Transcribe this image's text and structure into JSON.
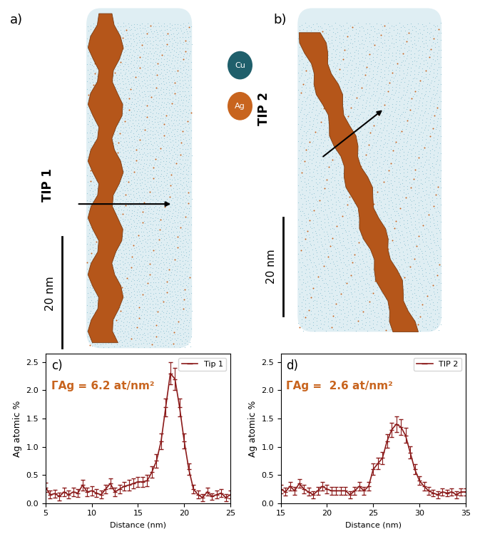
{
  "chart_data": [
    {
      "type": "line",
      "panel": "c)",
      "annotation": "ΓAg = 6.2 at/nm²",
      "x_label": "Distance (nm)",
      "y_label": "Ag atomic %",
      "legend": "upper right",
      "xlim": [
        5,
        25
      ],
      "xticks": [
        5,
        10,
        15,
        20,
        25
      ],
      "ylim": [
        0,
        2.65
      ],
      "yticks": [
        {
          "value": 0,
          "label": "0.0"
        },
        {
          "value": 0.5,
          "label": "0.5"
        },
        {
          "value": 1.0,
          "label": "1.0"
        },
        {
          "value": 1.5,
          "label": "1.5"
        },
        {
          "value": 2.0,
          "label": "2.0"
        },
        {
          "value": 2.5,
          "label": "2.5"
        }
      ],
      "x": [
        5,
        5.5,
        6,
        6.5,
        7,
        7.5,
        8,
        8.5,
        9,
        9.5,
        10,
        10.5,
        11,
        11.5,
        12,
        12.5,
        13,
        13.5,
        14,
        14.5,
        15,
        15.5,
        16,
        16.5,
        17,
        17.5,
        18,
        18.5,
        19,
        19.5,
        20,
        20.5,
        21,
        21.5,
        22,
        22.5,
        23,
        23.5,
        24,
        24.5,
        25
      ],
      "series": [
        {
          "name": "Tip 1",
          "color": "#8b1a1a",
          "marker": "dash",
          "values": [
            0.28,
            0.15,
            0.17,
            0.12,
            0.2,
            0.15,
            0.2,
            0.18,
            0.32,
            0.2,
            0.22,
            0.18,
            0.15,
            0.25,
            0.35,
            0.2,
            0.25,
            0.3,
            0.32,
            0.35,
            0.38,
            0.38,
            0.4,
            0.55,
            0.75,
            1.1,
            1.7,
            2.3,
            2.2,
            1.7,
            1.1,
            0.6,
            0.25,
            0.15,
            0.1,
            0.2,
            0.12,
            0.15,
            0.18,
            0.1,
            0.15
          ],
          "errors": [
            0.08,
            0.07,
            0.07,
            0.07,
            0.08,
            0.07,
            0.08,
            0.07,
            0.09,
            0.08,
            0.08,
            0.07,
            0.07,
            0.08,
            0.09,
            0.08,
            0.08,
            0.08,
            0.09,
            0.09,
            0.09,
            0.09,
            0.1,
            0.1,
            0.12,
            0.14,
            0.16,
            0.2,
            0.2,
            0.16,
            0.13,
            0.1,
            0.08,
            0.07,
            0.06,
            0.07,
            0.06,
            0.07,
            0.07,
            0.06,
            0.07
          ]
        }
      ]
    },
    {
      "type": "line",
      "panel": "d)",
      "annotation": "ΓAg =  2.6 at/nm²",
      "x_label": "Distance (nm)",
      "y_label": "Ag atomic %",
      "legend": "upper right",
      "xlim": [
        15,
        35
      ],
      "xticks": [
        15,
        20,
        25,
        30,
        35
      ],
      "ylim": [
        0,
        2.65
      ],
      "yticks": [
        {
          "value": 0,
          "label": "0.0"
        },
        {
          "value": 0.5,
          "label": "0.5"
        },
        {
          "value": 1.0,
          "label": "1.0"
        },
        {
          "value": 1.5,
          "label": "1.5"
        },
        {
          "value": 2.0,
          "label": "2.0"
        },
        {
          "value": 2.5,
          "label": "2.5"
        }
      ],
      "x": [
        15,
        15.5,
        16,
        16.5,
        17,
        17.5,
        18,
        18.5,
        19,
        19.5,
        20,
        20.5,
        21,
        21.5,
        22,
        22.5,
        23,
        23.5,
        24,
        24.5,
        25,
        25.5,
        26,
        26.5,
        27,
        27.5,
        28,
        28.5,
        29,
        29.5,
        30,
        30.5,
        31,
        31.5,
        32,
        32.5,
        33,
        33.5,
        34,
        34.5,
        35
      ],
      "series": [
        {
          "name": "TIP 2",
          "color": "#8b1a1a",
          "marker": "dash",
          "values": [
            0.25,
            0.2,
            0.3,
            0.22,
            0.35,
            0.25,
            0.2,
            0.15,
            0.22,
            0.3,
            0.25,
            0.22,
            0.22,
            0.22,
            0.22,
            0.15,
            0.22,
            0.3,
            0.22,
            0.3,
            0.6,
            0.7,
            0.8,
            1.1,
            1.3,
            1.4,
            1.35,
            1.2,
            0.9,
            0.6,
            0.4,
            0.3,
            0.22,
            0.18,
            0.15,
            0.2,
            0.18,
            0.2,
            0.15,
            0.2,
            0.2
          ],
          "errors": [
            0.07,
            0.07,
            0.08,
            0.07,
            0.08,
            0.07,
            0.07,
            0.06,
            0.07,
            0.08,
            0.07,
            0.07,
            0.07,
            0.07,
            0.07,
            0.06,
            0.07,
            0.08,
            0.07,
            0.08,
            0.1,
            0.1,
            0.11,
            0.12,
            0.13,
            0.14,
            0.14,
            0.13,
            0.11,
            0.09,
            0.08,
            0.07,
            0.07,
            0.06,
            0.06,
            0.06,
            0.06,
            0.06,
            0.06,
            0.06,
            0.06
          ]
        }
      ]
    }
  ],
  "images": {
    "legend": [
      {
        "label": "Cu",
        "color": "#1f5f6b"
      },
      {
        "label": "Ag",
        "color": "#c8641e"
      }
    ],
    "panels": [
      {
        "panel": "a)",
        "name": "TIP 1",
        "scale_bar": "20 nm"
      },
      {
        "panel": "b)",
        "name": "TIP 2",
        "scale_bar": "20 nm"
      }
    ]
  }
}
